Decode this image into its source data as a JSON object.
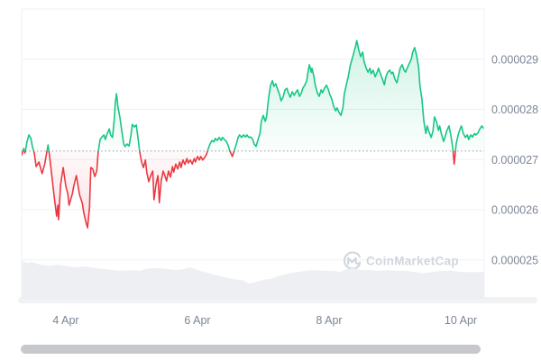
{
  "watermark": {
    "logo_icon": "coinmarketcap-logo",
    "text": "CoinMarketCap"
  },
  "colors": {
    "up": "#16c784",
    "down": "#ea3943",
    "grid": "#eef0f3",
    "baseline_dotted": "#a2aab4",
    "volume_fill": "#edeff3",
    "axis_label": "#7c8596",
    "watermark": "#d0d6de",
    "scrollbar_thumb": "#c6c8cc",
    "scrollbar_track": "#f1f2f4",
    "background": "#ffffff"
  },
  "chart_data": {
    "type": "line",
    "title": "",
    "xlabel": "",
    "ylabel": "",
    "price_unit": 1e-06,
    "grid": true,
    "baseline_value": 27.17,
    "x_range_days": [
      3.33,
      10.36
    ],
    "y_grid_values": [
      30,
      29,
      28,
      27,
      26,
      25
    ],
    "y_ticks": [
      {
        "label": "0.000029",
        "value": 29
      },
      {
        "label": "0.000028",
        "value": 28
      },
      {
        "label": "0.000027",
        "value": 27
      },
      {
        "label": "0.000026",
        "value": 26
      },
      {
        "label": "0.000025",
        "value": 25
      }
    ],
    "x_ticks": [
      {
        "label": "4 Apr",
        "day": 4
      },
      {
        "label": "6 Apr",
        "day": 6
      },
      {
        "label": "8 Apr",
        "day": 8
      },
      {
        "label": "10 Apr",
        "day": 10
      }
    ],
    "series": [
      {
        "name": "price",
        "points": [
          [
            3.33,
            27.09
          ],
          [
            3.36,
            27.22
          ],
          [
            3.38,
            27.13
          ],
          [
            3.41,
            27.35
          ],
          [
            3.44,
            27.49
          ],
          [
            3.47,
            27.42
          ],
          [
            3.49,
            27.27
          ],
          [
            3.52,
            27.13
          ],
          [
            3.55,
            26.86
          ],
          [
            3.59,
            26.95
          ],
          [
            3.62,
            26.81
          ],
          [
            3.64,
            26.72
          ],
          [
            3.68,
            26.91
          ],
          [
            3.73,
            27.29
          ],
          [
            3.75,
            27.09
          ],
          [
            3.78,
            26.77
          ],
          [
            3.82,
            26.29
          ],
          [
            3.86,
            25.87
          ],
          [
            3.88,
            26.09
          ],
          [
            3.89,
            25.8
          ],
          [
            3.92,
            26.5
          ],
          [
            3.96,
            26.84
          ],
          [
            4.0,
            26.47
          ],
          [
            4.03,
            26.32
          ],
          [
            4.05,
            26.09
          ],
          [
            4.1,
            26.32
          ],
          [
            4.12,
            26.47
          ],
          [
            4.16,
            26.68
          ],
          [
            4.21,
            26.29
          ],
          [
            4.25,
            26.13
          ],
          [
            4.27,
            25.96
          ],
          [
            4.3,
            25.78
          ],
          [
            4.33,
            25.64
          ],
          [
            4.36,
            26.05
          ],
          [
            4.38,
            26.84
          ],
          [
            4.41,
            26.81
          ],
          [
            4.44,
            26.66
          ],
          [
            4.47,
            26.77
          ],
          [
            4.49,
            27.13
          ],
          [
            4.52,
            27.4
          ],
          [
            4.55,
            27.45
          ],
          [
            4.58,
            27.49
          ],
          [
            4.6,
            27.4
          ],
          [
            4.63,
            27.52
          ],
          [
            4.66,
            27.61
          ],
          [
            4.68,
            27.49
          ],
          [
            4.71,
            27.44
          ],
          [
            4.74,
            27.85
          ],
          [
            4.75,
            28.12
          ],
          [
            4.77,
            28.31
          ],
          [
            4.78,
            28.21
          ],
          [
            4.79,
            28.06
          ],
          [
            4.82,
            27.85
          ],
          [
            4.85,
            27.58
          ],
          [
            4.88,
            27.31
          ],
          [
            4.9,
            27.26
          ],
          [
            4.93,
            27.31
          ],
          [
            4.96,
            27.27
          ],
          [
            4.99,
            27.49
          ],
          [
            5.01,
            27.7
          ],
          [
            5.04,
            27.65
          ],
          [
            5.07,
            27.69
          ],
          [
            5.1,
            27.4
          ],
          [
            5.12,
            27.17
          ],
          [
            5.15,
            26.95
          ],
          [
            5.18,
            26.84
          ],
          [
            5.21,
            26.99
          ],
          [
            5.23,
            26.74
          ],
          [
            5.26,
            26.56
          ],
          [
            5.29,
            26.68
          ],
          [
            5.32,
            26.77
          ],
          [
            5.34,
            26.2
          ],
          [
            5.37,
            26.5
          ],
          [
            5.4,
            26.68
          ],
          [
            5.42,
            26.14
          ],
          [
            5.45,
            26.59
          ],
          [
            5.48,
            26.77
          ],
          [
            5.51,
            26.66
          ],
          [
            5.53,
            26.57
          ],
          [
            5.56,
            26.77
          ],
          [
            5.59,
            26.65
          ],
          [
            5.62,
            26.86
          ],
          [
            5.64,
            26.75
          ],
          [
            5.67,
            26.91
          ],
          [
            5.7,
            26.81
          ],
          [
            5.73,
            26.95
          ],
          [
            5.75,
            26.84
          ],
          [
            5.78,
            26.99
          ],
          [
            5.81,
            26.9
          ],
          [
            5.84,
            27.02
          ],
          [
            5.86,
            26.93
          ],
          [
            5.89,
            26.99
          ],
          [
            5.92,
            26.91
          ],
          [
            5.95,
            27.02
          ],
          [
            5.97,
            26.95
          ],
          [
            6.0,
            27.06
          ],
          [
            6.03,
            26.99
          ],
          [
            6.05,
            27.06
          ],
          [
            6.08,
            26.99
          ],
          [
            6.11,
            27.04
          ],
          [
            6.14,
            27.11
          ],
          [
            6.16,
            27.2
          ],
          [
            6.19,
            27.31
          ],
          [
            6.22,
            27.38
          ],
          [
            6.25,
            27.35
          ],
          [
            6.27,
            27.42
          ],
          [
            6.3,
            27.38
          ],
          [
            6.33,
            27.44
          ],
          [
            6.36,
            27.38
          ],
          [
            6.38,
            27.44
          ],
          [
            6.41,
            27.4
          ],
          [
            6.44,
            27.36
          ],
          [
            6.47,
            27.27
          ],
          [
            6.49,
            27.17
          ],
          [
            6.52,
            27.09
          ],
          [
            6.53,
            27.06
          ],
          [
            6.56,
            27.18
          ],
          [
            6.59,
            27.31
          ],
          [
            6.62,
            27.45
          ],
          [
            6.64,
            27.49
          ],
          [
            6.67,
            27.44
          ],
          [
            6.7,
            27.49
          ],
          [
            6.73,
            27.45
          ],
          [
            6.75,
            27.49
          ],
          [
            6.78,
            27.44
          ],
          [
            6.81,
            27.45
          ],
          [
            6.84,
            27.4
          ],
          [
            6.86,
            27.31
          ],
          [
            6.89,
            27.26
          ],
          [
            6.92,
            27.4
          ],
          [
            6.95,
            27.52
          ],
          [
            6.97,
            27.76
          ],
          [
            7.0,
            27.88
          ],
          [
            7.03,
            27.76
          ],
          [
            7.05,
            27.85
          ],
          [
            7.08,
            28.21
          ],
          [
            7.11,
            28.48
          ],
          [
            7.14,
            28.57
          ],
          [
            7.16,
            28.46
          ],
          [
            7.19,
            28.51
          ],
          [
            7.22,
            28.39
          ],
          [
            7.25,
            28.28
          ],
          [
            7.27,
            28.17
          ],
          [
            7.3,
            28.24
          ],
          [
            7.33,
            28.39
          ],
          [
            7.36,
            28.42
          ],
          [
            7.38,
            28.33
          ],
          [
            7.41,
            28.24
          ],
          [
            7.44,
            28.35
          ],
          [
            7.47,
            28.28
          ],
          [
            7.49,
            28.33
          ],
          [
            7.52,
            28.39
          ],
          [
            7.55,
            28.26
          ],
          [
            7.58,
            28.33
          ],
          [
            7.6,
            28.42
          ],
          [
            7.63,
            28.48
          ],
          [
            7.66,
            28.57
          ],
          [
            7.68,
            28.74
          ],
          [
            7.7,
            28.89
          ],
          [
            7.73,
            28.74
          ],
          [
            7.74,
            28.82
          ],
          [
            7.77,
            28.65
          ],
          [
            7.79,
            28.48
          ],
          [
            7.82,
            28.33
          ],
          [
            7.85,
            28.26
          ],
          [
            7.88,
            28.39
          ],
          [
            7.9,
            28.33
          ],
          [
            7.93,
            28.42
          ],
          [
            7.96,
            28.48
          ],
          [
            7.99,
            28.39
          ],
          [
            8.01,
            28.3
          ],
          [
            8.04,
            28.21
          ],
          [
            8.07,
            28.06
          ],
          [
            8.1,
            27.97
          ],
          [
            8.12,
            28.03
          ],
          [
            8.15,
            27.94
          ],
          [
            8.18,
            27.88
          ],
          [
            8.21,
            28.03
          ],
          [
            8.23,
            28.3
          ],
          [
            8.26,
            28.48
          ],
          [
            8.29,
            28.65
          ],
          [
            8.32,
            28.87
          ],
          [
            8.34,
            28.96
          ],
          [
            8.37,
            29.1
          ],
          [
            8.4,
            29.25
          ],
          [
            8.42,
            29.37
          ],
          [
            8.45,
            29.19
          ],
          [
            8.48,
            29.05
          ],
          [
            8.51,
            29.14
          ],
          [
            8.53,
            28.96
          ],
          [
            8.56,
            28.83
          ],
          [
            8.59,
            28.74
          ],
          [
            8.62,
            28.82
          ],
          [
            8.64,
            28.71
          ],
          [
            8.67,
            28.78
          ],
          [
            8.7,
            28.65
          ],
          [
            8.73,
            28.74
          ],
          [
            8.75,
            28.82
          ],
          [
            8.78,
            28.71
          ],
          [
            8.81,
            28.6
          ],
          [
            8.84,
            28.49
          ],
          [
            8.86,
            28.64
          ],
          [
            8.89,
            28.74
          ],
          [
            8.92,
            28.78
          ],
          [
            8.95,
            28.71
          ],
          [
            8.97,
            28.74
          ],
          [
            9.0,
            28.6
          ],
          [
            9.03,
            28.53
          ],
          [
            9.05,
            28.65
          ],
          [
            9.08,
            28.82
          ],
          [
            9.11,
            28.89
          ],
          [
            9.14,
            28.78
          ],
          [
            9.16,
            28.74
          ],
          [
            9.19,
            28.83
          ],
          [
            9.22,
            28.92
          ],
          [
            9.25,
            29.01
          ],
          [
            9.27,
            29.14
          ],
          [
            9.3,
            29.23
          ],
          [
            9.33,
            29.07
          ],
          [
            9.36,
            28.83
          ],
          [
            9.38,
            28.48
          ],
          [
            9.41,
            28.21
          ],
          [
            9.44,
            27.76
          ],
          [
            9.47,
            27.52
          ],
          [
            9.49,
            27.67
          ],
          [
            9.52,
            27.54
          ],
          [
            9.55,
            27.44
          ],
          [
            9.58,
            27.58
          ],
          [
            9.6,
            27.85
          ],
          [
            9.63,
            27.76
          ],
          [
            9.66,
            27.58
          ],
          [
            9.68,
            27.67
          ],
          [
            9.71,
            27.49
          ],
          [
            9.74,
            27.36
          ],
          [
            9.77,
            27.49
          ],
          [
            9.79,
            27.58
          ],
          [
            9.82,
            27.67
          ],
          [
            9.85,
            27.49
          ],
          [
            9.88,
            27.22
          ],
          [
            9.9,
            26.91
          ],
          [
            9.93,
            27.31
          ],
          [
            9.96,
            27.49
          ],
          [
            9.99,
            27.61
          ],
          [
            10.01,
            27.67
          ],
          [
            10.04,
            27.52
          ],
          [
            10.07,
            27.44
          ],
          [
            10.1,
            27.49
          ],
          [
            10.12,
            27.4
          ],
          [
            10.15,
            27.49
          ],
          [
            10.18,
            27.45
          ],
          [
            10.21,
            27.52
          ],
          [
            10.23,
            27.49
          ],
          [
            10.26,
            27.53
          ],
          [
            10.29,
            27.61
          ],
          [
            10.32,
            27.67
          ],
          [
            10.34,
            27.63
          ]
        ]
      }
    ],
    "volume_profile": [
      [
        3.33,
        1.0
      ],
      [
        3.41,
        0.95
      ],
      [
        3.49,
        0.97
      ],
      [
        3.62,
        0.9
      ],
      [
        3.75,
        0.88
      ],
      [
        3.89,
        0.9
      ],
      [
        4.03,
        0.86
      ],
      [
        4.16,
        0.83
      ],
      [
        4.3,
        0.86
      ],
      [
        4.44,
        0.81
      ],
      [
        4.58,
        0.79
      ],
      [
        4.71,
        0.76
      ],
      [
        4.85,
        0.74
      ],
      [
        4.99,
        0.76
      ],
      [
        5.12,
        0.74
      ],
      [
        5.26,
        0.81
      ],
      [
        5.4,
        0.81
      ],
      [
        5.53,
        0.79
      ],
      [
        5.67,
        0.76
      ],
      [
        5.81,
        0.79
      ],
      [
        5.89,
        0.83
      ],
      [
        6.01,
        0.76
      ],
      [
        6.15,
        0.69
      ],
      [
        6.29,
        0.62
      ],
      [
        6.42,
        0.57
      ],
      [
        6.56,
        0.52
      ],
      [
        6.7,
        0.48
      ],
      [
        6.79,
        0.4
      ],
      [
        6.9,
        0.45
      ],
      [
        7.04,
        0.52
      ],
      [
        7.11,
        0.52
      ],
      [
        7.25,
        0.62
      ],
      [
        7.38,
        0.67
      ],
      [
        7.52,
        0.71
      ],
      [
        7.66,
        0.74
      ],
      [
        7.79,
        0.76
      ],
      [
        7.93,
        0.74
      ],
      [
        8.07,
        0.74
      ],
      [
        8.16,
        0.71
      ],
      [
        8.27,
        0.79
      ],
      [
        8.38,
        0.81
      ],
      [
        8.48,
        0.76
      ],
      [
        8.62,
        0.76
      ],
      [
        8.75,
        0.74
      ],
      [
        8.89,
        0.76
      ],
      [
        9.03,
        0.74
      ],
      [
        9.16,
        0.74
      ],
      [
        9.3,
        0.71
      ],
      [
        9.44,
        0.67
      ],
      [
        9.48,
        0.69
      ],
      [
        9.58,
        0.71
      ],
      [
        9.71,
        0.74
      ],
      [
        9.85,
        0.74
      ],
      [
        9.99,
        0.71
      ],
      [
        10.12,
        0.71
      ],
      [
        10.26,
        0.71
      ],
      [
        10.36,
        0.71
      ]
    ],
    "legend": []
  }
}
